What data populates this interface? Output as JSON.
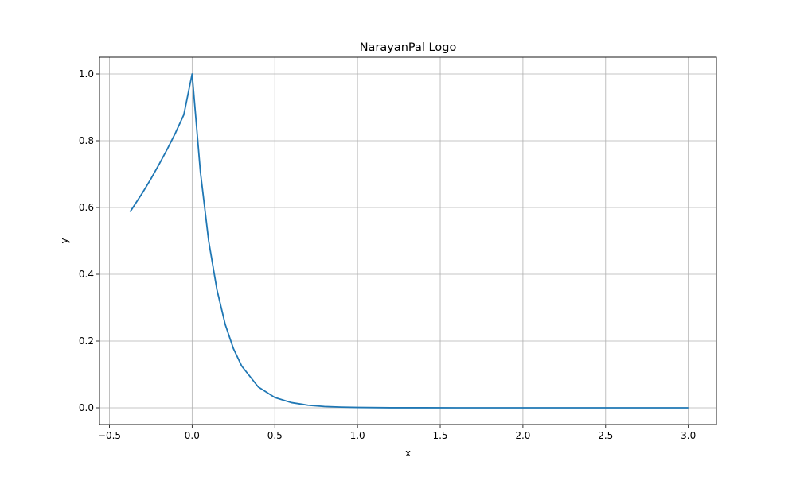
{
  "chart_data": {
    "type": "line",
    "title": "NarayanPal Logo",
    "xlabel": "x",
    "ylabel": "y",
    "xlim": [
      -0.56,
      3.17
    ],
    "ylim": [
      -0.05,
      1.05
    ],
    "xticks": [
      -0.5,
      0.0,
      0.5,
      1.0,
      1.5,
      2.0,
      2.5,
      3.0
    ],
    "xtick_labels": [
      "−0.5",
      "0.0",
      "0.5",
      "1.0",
      "1.5",
      "2.0",
      "2.5",
      "3.0"
    ],
    "yticks": [
      0.0,
      0.2,
      0.4,
      0.6,
      0.8,
      1.0
    ],
    "ytick_labels": [
      "0.0",
      "0.2",
      "0.4",
      "0.6",
      "0.8",
      "1.0"
    ],
    "grid": true,
    "series": [
      {
        "color": "#1f77b4",
        "x": [
          -0.375,
          -0.35,
          -0.3,
          -0.25,
          -0.2,
          -0.15,
          -0.1,
          -0.05,
          0.0,
          0.05,
          0.1,
          0.15,
          0.2,
          0.25,
          0.3,
          0.4,
          0.5,
          0.6,
          0.7,
          0.8,
          0.9,
          1.0,
          1.2,
          1.4,
          1.6,
          1.8,
          2.0,
          2.25,
          2.5,
          2.75,
          3.0
        ],
        "y": [
          0.587,
          0.606,
          0.644,
          0.685,
          0.729,
          0.775,
          0.824,
          0.878,
          1.0,
          0.707,
          0.5,
          0.354,
          0.25,
          0.177,
          0.125,
          0.0625,
          0.031,
          0.0156,
          0.0078,
          0.0039,
          0.002,
          0.001,
          0.0002,
          0.0001,
          0.0,
          0.0,
          0.0,
          0.0,
          0.0,
          0.0,
          0.0
        ]
      }
    ]
  }
}
